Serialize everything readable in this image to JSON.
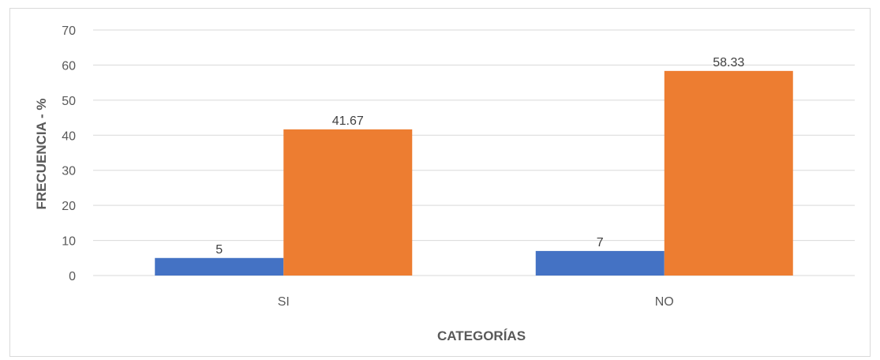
{
  "chart_data": {
    "type": "bar",
    "title": "",
    "xlabel": "CATEGORÍAS",
    "ylabel": "FRECUENCIA - %",
    "categories": [
      "SI",
      "NO"
    ],
    "series": [
      {
        "values": [
          5,
          7
        ],
        "labels": [
          "5",
          "7"
        ],
        "color": "#4472C4"
      },
      {
        "values": [
          41.67,
          58.33
        ],
        "labels": [
          "41.67",
          "58.33"
        ],
        "color": "#ED7D31"
      }
    ],
    "ylim": [
      0,
      70
    ],
    "yticks": [
      "0",
      "10",
      "20",
      "30",
      "40",
      "50",
      "60",
      "70"
    ],
    "grid": true,
    "legend": false
  }
}
